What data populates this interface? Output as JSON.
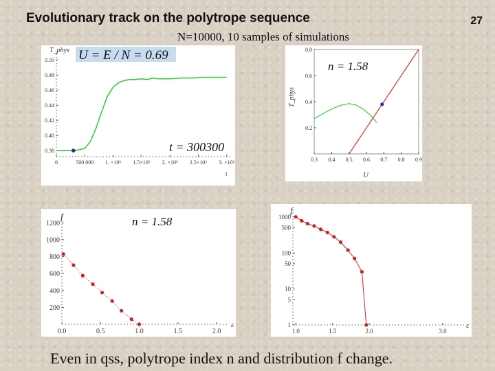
{
  "header": {
    "title": "Evolutionary track on the polytrope sequence",
    "page_number": "27",
    "subtitle": "N=10000, 10 samples of simulations"
  },
  "caption": "Even in qss, polytrope index n and distribution f  change.",
  "chart_data": [
    {
      "id": "temp-vs-time",
      "type": "line",
      "title": "",
      "xlabel": "t",
      "ylabel": "T_phys",
      "legend_box": "U = E / N = 0.69",
      "annotation": "t = 300300",
      "xlim": [
        0,
        3100000
      ],
      "ylim": [
        0.372,
        0.512
      ],
      "x_ticks": [
        0,
        500000,
        1000000,
        1500000,
        2000000,
        2500000,
        3000000
      ],
      "x_tick_labels": [
        "0",
        "500 000",
        "1. ×10⁶",
        "1.5×10⁶",
        "2. ×10⁶",
        "2.5×10⁶",
        "3. ×10⁶"
      ],
      "y_ticks": [
        0.38,
        0.4,
        0.42,
        0.44,
        0.46,
        0.48,
        0.5
      ],
      "y_tick_labels": [
        "0.38",
        "0.40",
        "0.42",
        "0.44",
        "0.46",
        "0.48",
        "0.50"
      ],
      "colors": {
        "line": "#33cc33",
        "marker": "#2233aa",
        "legend_box": "#c8dcf0"
      },
      "series": [
        {
          "x": [
            0,
            200000,
            300000,
            400000,
            500000,
            600000,
            700000,
            800000,
            900000,
            1000000,
            1100000,
            1200000,
            1300000,
            1400000,
            1500000,
            1600000,
            1700000,
            1800000,
            1900000,
            2000000,
            2200000,
            2400000,
            2600000,
            2800000,
            3000000
          ],
          "values": [
            0.38,
            0.38,
            0.38,
            0.381,
            0.383,
            0.392,
            0.41,
            0.432,
            0.452,
            0.464,
            0.47,
            0.473,
            0.474,
            0.474,
            0.475,
            0.474,
            0.476,
            0.475,
            0.475,
            0.475,
            0.476,
            0.476,
            0.477,
            0.477,
            0.477
          ]
        }
      ],
      "marker_point": {
        "x": 300300,
        "y": 0.38
      }
    },
    {
      "id": "temp-vs-energy",
      "type": "line",
      "title": "",
      "annotation": "n = 1.58",
      "xlabel": "U",
      "ylabel": "T_phys",
      "xlim": [
        0.3,
        0.9
      ],
      "ylim": [
        0.0,
        0.8
      ],
      "x_ticks": [
        0.3,
        0.4,
        0.5,
        0.6,
        0.7,
        0.8,
        0.9
      ],
      "x_tick_labels": [
        "0.3",
        "0.4",
        "0.5",
        "0.6",
        "0.7",
        "0.8",
        "0.9"
      ],
      "y_ticks": [
        0.2,
        0.4,
        0.6,
        0.8
      ],
      "y_tick_labels": [
        "0.2",
        "0.4",
        "0.6",
        "0.8"
      ],
      "colors": {
        "caloric": "#33cc33",
        "linear": "#cc3322",
        "marker": "#2233aa"
      },
      "series": [
        {
          "x": [
            0.3,
            0.34,
            0.38,
            0.42,
            0.46,
            0.5,
            0.54,
            0.58,
            0.62,
            0.66
          ],
          "values": [
            0.27,
            0.3,
            0.33,
            0.355,
            0.375,
            0.385,
            0.375,
            0.345,
            0.3,
            0.24
          ]
        },
        {
          "x": [
            0.5,
            0.9
          ],
          "values": [
            0.0,
            0.8
          ]
        }
      ],
      "marker_point": {
        "x": 0.69,
        "y": 0.38
      }
    },
    {
      "id": "f-vs-epsilon-linear",
      "type": "scatter",
      "title": "",
      "annotation": "n = 1.58",
      "xlabel": "ε",
      "ylabel": "f",
      "xlim": [
        0,
        2.15
      ],
      "ylim": [
        0,
        1300
      ],
      "x_ticks": [
        0.0,
        0.5,
        1.0,
        1.5,
        2.0
      ],
      "x_tick_labels": [
        "0.0",
        "0.5",
        "1.0",
        "1.5",
        "2.0"
      ],
      "y_ticks": [
        200,
        400,
        600,
        800,
        1000,
        1200
      ],
      "y_tick_labels": [
        "200",
        "400",
        "600",
        "800",
        "1000",
        "1200"
      ],
      "colors": {
        "points": "#cc2222"
      },
      "series": [
        {
          "x": [
            0.02,
            0.15,
            0.27,
            0.4,
            0.52,
            0.65,
            0.77,
            0.9,
            1.0
          ],
          "values": [
            830,
            700,
            575,
            475,
            375,
            275,
            160,
            60,
            0
          ]
        }
      ]
    },
    {
      "id": "f-vs-epsilon-log",
      "type": "scatter",
      "title": "",
      "xlabel": "ε",
      "ylabel": "f",
      "xlim": [
        0.96,
        3.3
      ],
      "ylim": [
        1,
        1600
      ],
      "log_y": true,
      "x_ticks": [
        1.0,
        1.5,
        2.0,
        3.0
      ],
      "x_tick_labels": [
        "1.0",
        "1.5",
        "2.0",
        "3.0"
      ],
      "y_ticks": [
        1,
        5,
        10,
        50,
        100,
        500,
        1000
      ],
      "y_tick_labels": [
        "1",
        "5",
        "10",
        "50",
        "100",
        "500",
        "1000"
      ],
      "colors": {
        "points": "#cc2222"
      },
      "series": [
        {
          "x": [
            1.0,
            1.08,
            1.16,
            1.25,
            1.34,
            1.43,
            1.52,
            1.61,
            1.71,
            1.8,
            1.9,
            1.96
          ],
          "values": [
            1000,
            780,
            650,
            560,
            450,
            370,
            280,
            200,
            120,
            70,
            30,
            1
          ]
        }
      ]
    }
  ]
}
